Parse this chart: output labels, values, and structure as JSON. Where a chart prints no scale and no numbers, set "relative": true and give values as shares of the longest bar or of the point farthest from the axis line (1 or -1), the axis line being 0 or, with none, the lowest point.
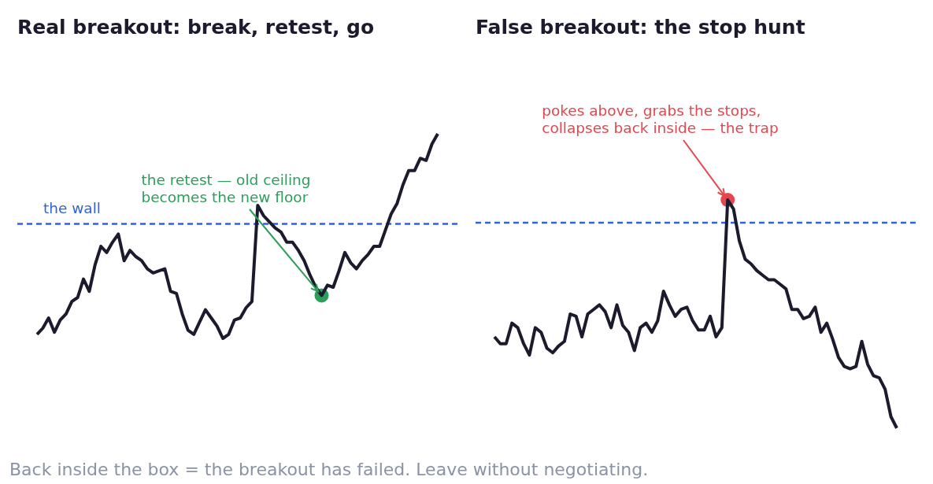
{
  "chart_data": [
    {
      "type": "line",
      "title": "Real breakout: break, retest, go",
      "relative": true,
      "legend": false,
      "marker": "none",
      "line_style": "solid",
      "categories": [
        null,
        null,
        null,
        null,
        null,
        null,
        null,
        null,
        null,
        null,
        null,
        null,
        null,
        null,
        null,
        null,
        null,
        null,
        null,
        null,
        null,
        null,
        null,
        null,
        null,
        null,
        null,
        null,
        null,
        null,
        null,
        null,
        null,
        null,
        null,
        null,
        null,
        null,
        null,
        null,
        null,
        null,
        null,
        null,
        null,
        null,
        null,
        null,
        null,
        null,
        null,
        null,
        null,
        null,
        null,
        null,
        null,
        null,
        null,
        null,
        null,
        null,
        null,
        null,
        null,
        null,
        null,
        null,
        null,
        null
      ],
      "series": [
        {
          "color": "#1c1b2e",
          "values": [
            0.02,
            0.05,
            0.1,
            0.03,
            0.09,
            0.12,
            0.18,
            0.2,
            0.29,
            0.23,
            0.36,
            0.45,
            0.42,
            0.47,
            0.51,
            0.38,
            0.43,
            0.4,
            0.38,
            0.34,
            0.32,
            0.33,
            0.34,
            0.23,
            0.22,
            0.12,
            0.04,
            0.02,
            0.08,
            0.14,
            0.1,
            0.06,
            0,
            0.02,
            0.09,
            0.1,
            0.15,
            0.18,
            0.65,
            0.6,
            0.57,
            0.54,
            0.52,
            0.47,
            0.47,
            0.43,
            0.38,
            0.31,
            0.25,
            0.21,
            0.26,
            0.25,
            0.33,
            0.42,
            0.37,
            0.34,
            0.38,
            0.41,
            0.45,
            0.45,
            0.53,
            0.61,
            0.66,
            0.75,
            0.82,
            0.82,
            0.88,
            0.87,
            0.95,
            1
          ]
        },
        {
          "marker": "circle",
          "color": "#2e9e5b",
          "values": [
            null,
            null,
            null,
            null,
            null,
            null,
            null,
            null,
            null,
            null,
            null,
            null,
            null,
            null,
            null,
            null,
            null,
            null,
            null,
            null,
            null,
            null,
            null,
            null,
            null,
            null,
            null,
            null,
            null,
            null,
            null,
            null,
            null,
            null,
            null,
            null,
            null,
            null,
            null,
            null,
            null,
            null,
            null,
            null,
            null,
            null,
            null,
            null,
            null,
            0.21,
            null,
            null,
            null,
            null,
            null,
            null,
            null,
            null,
            null,
            null,
            null,
            null,
            null,
            null,
            null,
            null,
            null,
            null,
            null,
            null
          ]
        }
      ],
      "ref_lines": [
        {
          "axis": "y",
          "value": 0.56,
          "label": "the wall",
          "color": "#2f63e0",
          "line_style": "dashed"
        }
      ],
      "annotations": [
        "the retest — old ceiling\nbecomes the new floor",
        "Back inside the box = the breakout has failed. Leave without negotiating."
      ]
    },
    {
      "type": "line",
      "title": "False breakout: the stop hunt",
      "relative": true,
      "legend": false,
      "marker": "none",
      "line_style": "solid",
      "categories": [
        null,
        null,
        null,
        null,
        null,
        null,
        null,
        null,
        null,
        null,
        null,
        null,
        null,
        null,
        null,
        null,
        null,
        null,
        null,
        null,
        null,
        null,
        null,
        null,
        null,
        null,
        null,
        null,
        null,
        null,
        null,
        null,
        null,
        null,
        null,
        null,
        null,
        null,
        null,
        null,
        null,
        null,
        null,
        null,
        null,
        null,
        null,
        null,
        null,
        null,
        null,
        null,
        null,
        null,
        null,
        null,
        null,
        null,
        null,
        null,
        null,
        null,
        null,
        null,
        null,
        null,
        null,
        null,
        null,
        null
      ],
      "series": [
        {
          "color": "#1c1b2e",
          "values": [
            0.4,
            0.37,
            0.37,
            0.46,
            0.44,
            0.37,
            0.32,
            0.44,
            0.42,
            0.35,
            0.33,
            0.36,
            0.38,
            0.5,
            0.49,
            0.4,
            0.5,
            0.52,
            0.54,
            0.51,
            0.44,
            0.54,
            0.45,
            0.42,
            0.34,
            0.44,
            0.46,
            0.42,
            0.47,
            0.6,
            0.54,
            0.49,
            0.52,
            0.53,
            0.47,
            0.43,
            0.43,
            0.49,
            0.4,
            0.44,
            1,
            0.96,
            0.82,
            0.74,
            0.72,
            0.69,
            0.67,
            0.65,
            0.65,
            0.63,
            0.61,
            0.52,
            0.52,
            0.48,
            0.49,
            0.53,
            0.42,
            0.46,
            0.39,
            0.31,
            0.27,
            0.26,
            0.27,
            0.38,
            0.28,
            0.23,
            0.22,
            0.17,
            0.05,
            0
          ]
        },
        {
          "marker": "circle",
          "color": "#e5474f",
          "values": [
            null,
            null,
            null,
            null,
            null,
            null,
            null,
            null,
            null,
            null,
            null,
            null,
            null,
            null,
            null,
            null,
            null,
            null,
            null,
            null,
            null,
            null,
            null,
            null,
            null,
            null,
            null,
            null,
            null,
            null,
            null,
            null,
            null,
            null,
            null,
            null,
            null,
            null,
            null,
            null,
            1,
            null,
            null,
            null,
            null,
            null,
            null,
            null,
            null,
            null,
            null,
            null,
            null,
            null,
            null,
            null,
            null,
            null,
            null,
            null,
            null,
            null,
            null,
            null,
            null,
            null,
            null,
            null,
            null,
            null
          ]
        }
      ],
      "ref_lines": [
        {
          "axis": "y",
          "value": 0.9,
          "color": "#2f63e0",
          "line_style": "dashed"
        }
      ],
      "annotations": [
        "pokes above, grabs the stops,\ncollapses back inside — the trap"
      ]
    }
  ]
}
